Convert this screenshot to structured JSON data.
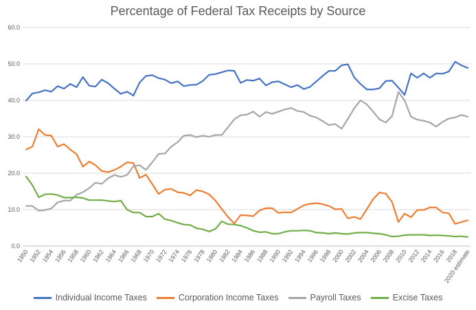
{
  "chart_data": {
    "type": "line",
    "title": "Percentage of Federal Tax Receipts by Source",
    "xlabel": "",
    "ylabel": "",
    "ylim": [
      0,
      60
    ],
    "yticks": [
      "0.0",
      "10.0",
      "20.0",
      "30.0",
      "40.0",
      "50.0",
      "60.0"
    ],
    "grid": true,
    "legend_position": "bottom",
    "categories": [
      "1950",
      "1951",
      "1952",
      "1953",
      "1954",
      "1955",
      "1956",
      "1957",
      "1958",
      "1959",
      "1960",
      "1961",
      "1962",
      "1963",
      "1964",
      "1965",
      "1966",
      "1967",
      "1968",
      "1969",
      "1970",
      "1971",
      "1972",
      "1973",
      "1974",
      "1975",
      "1976",
      "1977",
      "1978",
      "1979",
      "1980",
      "1981",
      "1982",
      "1983",
      "1984",
      "1985",
      "1986",
      "1987",
      "1988",
      "1989",
      "1990",
      "1991",
      "1992",
      "1993",
      "1994",
      "1995",
      "1996",
      "1997",
      "1998",
      "1999",
      "2000",
      "2001",
      "2002",
      "2003",
      "2004",
      "2005",
      "2006",
      "2007",
      "2008",
      "2009",
      "2010",
      "2011",
      "2012",
      "2013",
      "2014",
      "2015",
      "2016",
      "2017",
      "2018",
      "2019",
      "2020 estimate"
    ],
    "xtick_labels": [
      "1950",
      "1952",
      "1954",
      "1956",
      "1958",
      "1960",
      "1962",
      "1964",
      "1966",
      "1968",
      "1970",
      "1972",
      "1974",
      "1976",
      "1978",
      "1980",
      "1982",
      "1984",
      "1986",
      "1988",
      "1990",
      "1992",
      "1994",
      "1996",
      "1998",
      "2000",
      "2002",
      "2004",
      "2006",
      "2008",
      "2010",
      "2012",
      "2014",
      "2016",
      "2018",
      "2020 estimate"
    ],
    "series": [
      {
        "name": "Individual Income Taxes",
        "color": "#4472c4",
        "values": [
          39.9,
          41.9,
          42.2,
          42.8,
          42.4,
          43.9,
          43.2,
          44.5,
          43.6,
          46.4,
          44.0,
          43.8,
          45.7,
          44.7,
          43.2,
          41.8,
          42.4,
          41.3,
          44.9,
          46.7,
          46.9,
          46.1,
          45.7,
          44.7,
          45.2,
          43.9,
          44.2,
          44.3,
          45.3,
          47.0,
          47.2,
          47.7,
          48.2,
          48.1,
          44.8,
          45.6,
          45.4,
          46.0,
          44.1,
          45.0,
          45.2,
          44.4,
          43.6,
          44.2,
          43.1,
          43.7,
          45.2,
          46.7,
          48.1,
          48.1,
          49.6,
          49.9,
          46.3,
          44.5,
          43.0,
          43.0,
          43.3,
          45.3,
          45.4,
          43.5,
          41.5,
          47.4,
          46.2,
          47.4,
          46.2,
          47.4,
          47.3,
          47.9,
          50.6,
          49.6,
          48.9
        ]
      },
      {
        "name": "Corporation Income Taxes",
        "color": "#ed7d31",
        "values": [
          26.5,
          27.3,
          32.1,
          30.5,
          30.3,
          27.3,
          28.0,
          26.5,
          25.2,
          21.8,
          23.2,
          22.2,
          20.6,
          20.3,
          20.9,
          21.8,
          23.0,
          22.8,
          18.7,
          19.6,
          17.0,
          14.3,
          15.5,
          15.7,
          14.8,
          14.6,
          13.9,
          15.4,
          15.0,
          14.2,
          12.5,
          10.2,
          8.0,
          6.2,
          8.5,
          8.4,
          8.2,
          9.8,
          10.4,
          10.4,
          9.1,
          9.3,
          9.2,
          10.2,
          11.2,
          11.6,
          11.8,
          11.5,
          11.0,
          10.1,
          10.2,
          7.6,
          8.0,
          7.4,
          10.1,
          12.9,
          14.7,
          14.4,
          12.1,
          6.6,
          8.9,
          7.9,
          9.9,
          9.9,
          10.6,
          10.6,
          9.2,
          9.0,
          6.1,
          6.6,
          7.1
        ]
      },
      {
        "name": "Payroll Taxes",
        "color": "#a5a5a5",
        "values": [
          11.0,
          11.0,
          9.7,
          9.9,
          10.3,
          12.0,
          12.5,
          12.5,
          14.1,
          14.8,
          15.9,
          17.4,
          17.1,
          18.6,
          19.5,
          19.0,
          19.5,
          21.9,
          22.2,
          20.9,
          23.0,
          25.3,
          25.4,
          27.3,
          28.5,
          30.3,
          30.5,
          29.9,
          30.3,
          30.0,
          30.5,
          30.5,
          32.6,
          34.8,
          35.9,
          36.1,
          36.9,
          35.5,
          36.8,
          36.3,
          36.9,
          37.5,
          37.9,
          37.1,
          36.8,
          35.8,
          35.3,
          34.3,
          33.2,
          33.5,
          32.2,
          34.9,
          37.8,
          40.0,
          38.9,
          36.9,
          34.8,
          33.9,
          35.7,
          42.3,
          40.0,
          35.5,
          34.7,
          34.4,
          33.9,
          32.8,
          34.1,
          35.0,
          35.3,
          36.0,
          35.5
        ]
      },
      {
        "name": "Excise Taxes",
        "color": "#70ad47",
        "values": [
          19.1,
          16.7,
          13.4,
          14.2,
          14.3,
          14.0,
          13.3,
          13.3,
          13.4,
          13.2,
          12.6,
          12.6,
          12.6,
          12.4,
          12.2,
          12.5,
          10.0,
          9.2,
          9.2,
          8.1,
          8.1,
          8.9,
          7.4,
          7.0,
          6.4,
          5.9,
          5.8,
          4.9,
          4.6,
          4.0,
          4.7,
          6.8,
          6.0,
          5.9,
          5.6,
          5.0,
          4.2,
          3.8,
          3.9,
          3.4,
          3.4,
          3.9,
          4.2,
          4.2,
          4.3,
          4.2,
          3.7,
          3.6,
          3.4,
          3.6,
          3.4,
          3.3,
          3.6,
          3.7,
          3.7,
          3.5,
          3.4,
          3.1,
          2.6,
          2.7,
          3.0,
          3.1,
          3.1,
          3.1,
          2.9,
          3.0,
          2.9,
          2.8,
          2.6,
          2.7,
          2.5
        ]
      }
    ]
  }
}
